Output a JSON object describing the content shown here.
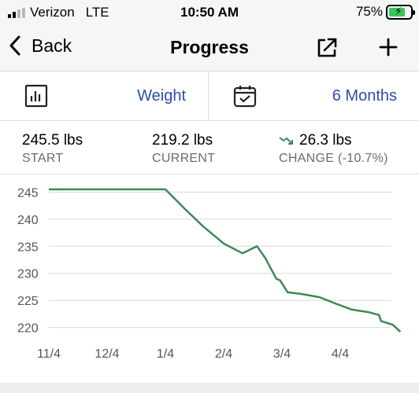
{
  "status_bar": {
    "carrier": "Verizon",
    "network": "LTE",
    "time": "10:50 AM",
    "battery_percent": "75%",
    "battery_level": 0.75,
    "charging_icon": "bolt-icon"
  },
  "nav": {
    "back_label": "Back",
    "title": "Progress",
    "share_icon": "share-icon",
    "add_icon": "plus-icon"
  },
  "selectors": {
    "metric_icon": "chart-icon",
    "metric_value": "Weight",
    "range_icon": "calendar-icon",
    "range_value": "6 Months"
  },
  "stats": {
    "start_value": "245.5 lbs",
    "start_label": "START",
    "current_value": "219.2 lbs",
    "current_label": "CURRENT",
    "change_value": "26.3 lbs",
    "change_label": "CHANGE (-10.7%)",
    "change_icon": "trend-down-icon"
  },
  "colors": {
    "accent": "#2a4ea8",
    "line": "#3c8a56",
    "battery": "#35c759"
  },
  "chart_data": {
    "type": "line",
    "x_ticks": [
      "11/4",
      "12/4",
      "1/4",
      "2/4",
      "3/4",
      "4/4"
    ],
    "y_ticks": [
      245,
      240,
      235,
      230,
      225,
      220
    ],
    "ylim": [
      218.5,
      246.5
    ],
    "grid": true,
    "series": [
      {
        "x": [
          "11/4",
          "1/4",
          "1/14",
          "1/24",
          "2/4",
          "2/13",
          "2/20",
          "2/24",
          "3/1",
          "3/3",
          "3/7",
          "3/14",
          "3/24",
          "4/1",
          "4/10",
          "4/19",
          "4/24",
          "4/25",
          "5/1",
          "5/5"
        ],
        "values": [
          245.5,
          245.5,
          242.0,
          238.7,
          235.5,
          233.7,
          235.0,
          232.8,
          229.0,
          228.7,
          226.5,
          226.2,
          225.6,
          224.5,
          223.3,
          222.8,
          222.3,
          221.2,
          220.5,
          219.2
        ]
      }
    ]
  }
}
